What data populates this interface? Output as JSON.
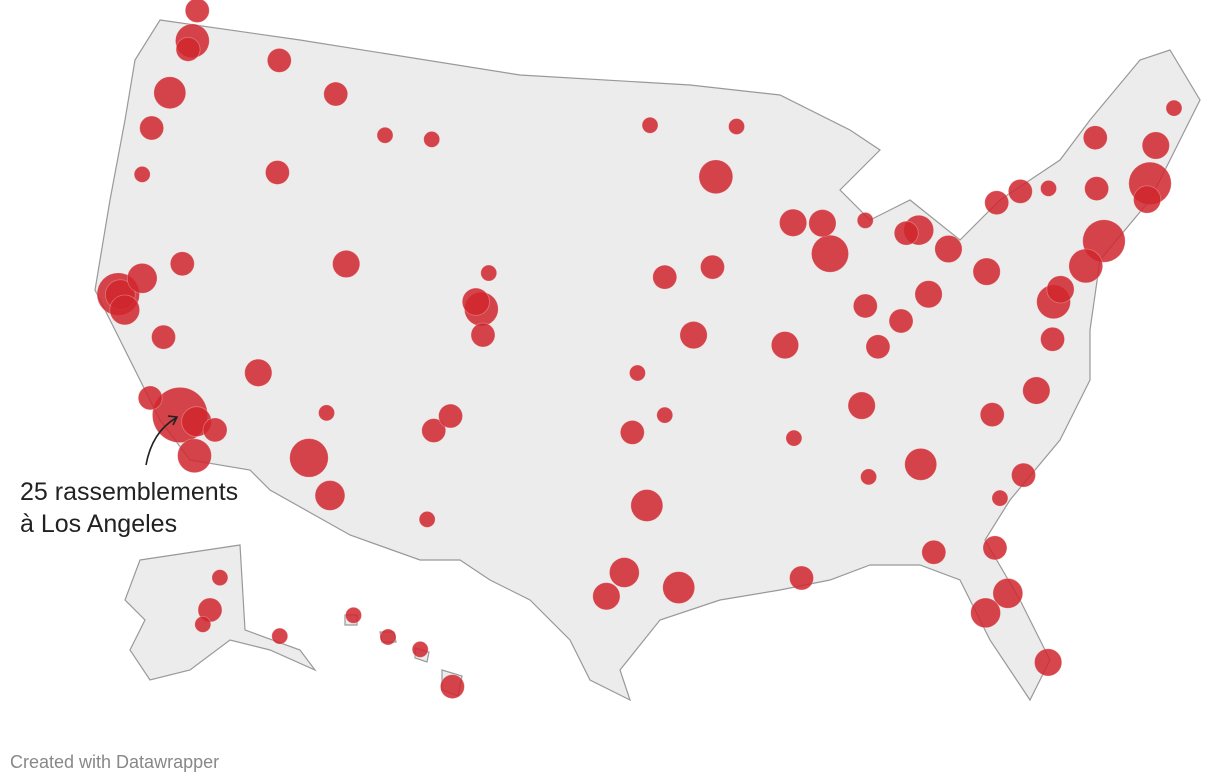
{
  "chart_data": {
    "type": "map",
    "annotation": [
      "25 rassemblements",
      "à Los Angeles"
    ],
    "credit": "Created with Datawrapper",
    "dot_color": "#d0262d",
    "land_color": "#ececec",
    "points": {
      "lon": [
        -122.3,
        -122.5,
        -122.4,
        -117.4,
        -122.7,
        -123.1,
        -122.9,
        -116.2,
        -122.4,
        -122.3,
        -121.5,
        -121.9,
        -119.8,
        -119.7,
        -118.2,
        -117.15,
        -117.4,
        -116.5,
        -115.1,
        -119.8,
        -112.1,
        -110.9,
        -111.65,
        -111.9,
        -105.0,
        -105.3,
        -104.8,
        -106.65,
        -105.95,
        -114.0,
        -111.0,
        -108.5,
        -104.8,
        -96.8,
        -93.3,
        -92.1,
        -89.4,
        -87.9,
        -87.65,
        -83.05,
        -83.7,
        -85.7,
        -81.7,
        -83.0,
        -84.5,
        -80.0,
        -86.15,
        -90.2,
        -94.6,
        -96.0,
        -93.6,
        -97.3,
        -97.5,
        -96.0,
        -96.8,
        -97.75,
        -98.5,
        -95.4,
        -106.5,
        -90.1,
        -90.05,
        -86.8,
        -84.4,
        -86.8,
        -80.85,
        -78.65,
        -77.45,
        -77.05,
        -76.6,
        -75.15,
        -74.0,
        -73.75,
        -71.05,
        -71.4,
        -70.25,
        -73.2,
        -68.8,
        -81.65,
        -81.4,
        -82.45,
        -80.2,
        -84.3,
        -79.9,
        -81.1,
        -85.75,
        -78.9,
        -77.6,
        -76.15
      ],
      "lat": [
        47.6,
        48.75,
        47.25,
        47.7,
        45.5,
        44.05,
        42.3,
        43.6,
        37.8,
        37.8,
        38.6,
        37.3,
        36.7,
        34.4,
        34.05,
        32.7,
        33.95,
        33.8,
        36.2,
        39.5,
        33.45,
        32.2,
        35.2,
        40.75,
        39.75,
        40.0,
        38.8,
        35.1,
        35.7,
        46.9,
        45.7,
        45.8,
        41.1,
        46.9,
        44.95,
        46.8,
        43.1,
        43.0,
        41.85,
        42.35,
        42.3,
        42.95,
        41.5,
        39.95,
        39.1,
        40.45,
        39.8,
        38.6,
        39.1,
        41.25,
        41.6,
        37.7,
        35.5,
        36.15,
        32.8,
        30.3,
        29.4,
        29.75,
        31.8,
        29.95,
        35.15,
        36.15,
        33.75,
        33.5,
        35.2,
        35.8,
        37.55,
        38.9,
        39.3,
        39.95,
        40.7,
        42.65,
        42.35,
        41.8,
        43.65,
        44.5,
        44.8,
        30.3,
        28.55,
        27.95,
        25.75,
        30.45,
        32.8,
        32.1,
        38.25,
        42.9,
        43.15,
        43.05
      ],
      "count": [
        6,
        2,
        2,
        2,
        5,
        2,
        1,
        2,
        12,
        4,
        4,
        4,
        2,
        2,
        25,
        6,
        4,
        2,
        3,
        2,
        9,
        4,
        1,
        3,
        6,
        3,
        2,
        2,
        2,
        2,
        1,
        1,
        1,
        1,
        6,
        1,
        3,
        3,
        8,
        4,
        2,
        1,
        3,
        3,
        2,
        3,
        2,
        3,
        3,
        2,
        2,
        1,
        2,
        1,
        5,
        4,
        3,
        5,
        1,
        2,
        1,
        3,
        5,
        1,
        2,
        3,
        2,
        6,
        3,
        6,
        12,
        2,
        12,
        3,
        3,
        2,
        1,
        2,
        4,
        4,
        3,
        2,
        2,
        1,
        2,
        2,
        2,
        1
      ]
    },
    "alaska": {
      "lon": [
        -149.9,
        -147.7,
        -134.4,
        -151.5
      ],
      "lat": [
        61.2,
        64.8,
        58.3,
        59.6
      ],
      "count": [
        2,
        1,
        1,
        1
      ]
    },
    "hawaii": {
      "lon": [
        -157.9,
        -155.1,
        -159.4,
        -156.5
      ],
      "lat": [
        21.3,
        19.7,
        22.0,
        20.9
      ],
      "count": [
        1,
        2,
        1,
        1
      ]
    }
  }
}
